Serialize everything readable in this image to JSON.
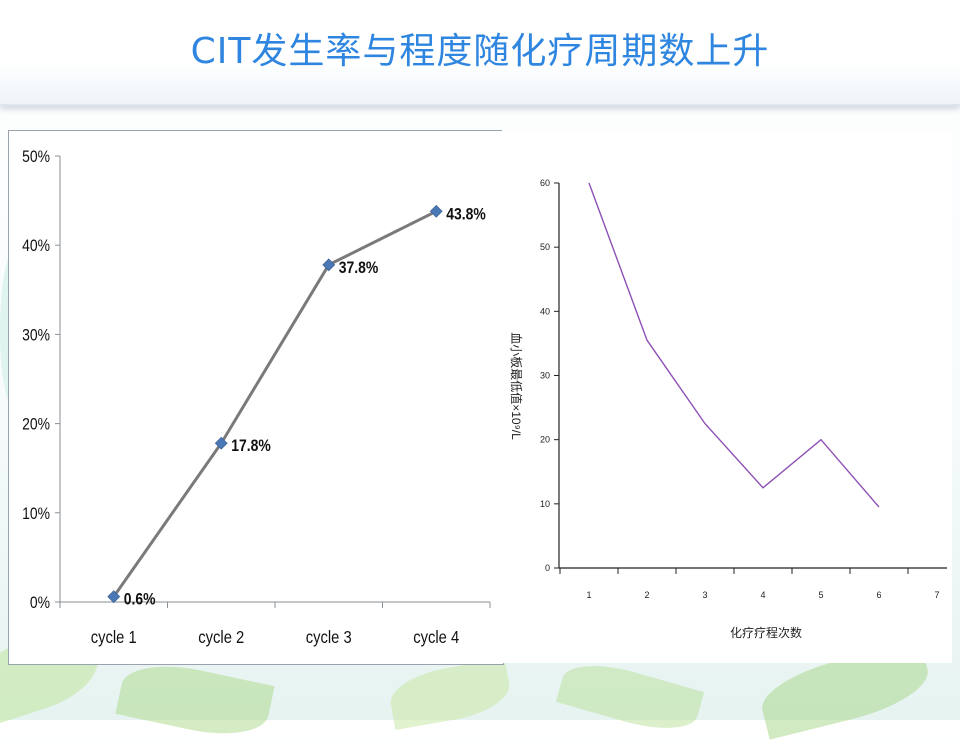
{
  "title": "CIT发生率与程度随化疗周期数上升",
  "chart_data": [
    {
      "type": "line",
      "title": "",
      "categories": [
        "cycle 1",
        "cycle 2",
        "cycle 3",
        "cycle 4"
      ],
      "values": [
        0.6,
        17.8,
        37.8,
        43.8
      ],
      "data_labels": [
        "0.6%",
        "17.8%",
        "37.8%",
        "43.8%"
      ],
      "yticks": [
        "0%",
        "10%",
        "20%",
        "30%",
        "40%",
        "50%"
      ],
      "ylim": [
        0,
        50
      ],
      "xlabel": "",
      "ylabel": "",
      "grid": false,
      "line_color": "#7a7a7a",
      "marker_color": "#4a78b5",
      "marker": "diamond"
    },
    {
      "type": "line",
      "title": "",
      "x": [
        1,
        2,
        3,
        4,
        5,
        6
      ],
      "values": [
        60,
        35.5,
        22.5,
        12.5,
        20,
        9.5
      ],
      "xticks": [
        "1",
        "2",
        "3",
        "4",
        "5",
        "6",
        "7"
      ],
      "yticks": [
        "0",
        "10",
        "20",
        "30",
        "40",
        "50",
        "60"
      ],
      "xlim": [
        1,
        7
      ],
      "ylim": [
        0,
        60
      ],
      "xlabel": "化疗疗程次数",
      "ylabel": "血小板最低值×10⁹/L",
      "grid": false,
      "line_color": "#8e4fb6"
    }
  ]
}
